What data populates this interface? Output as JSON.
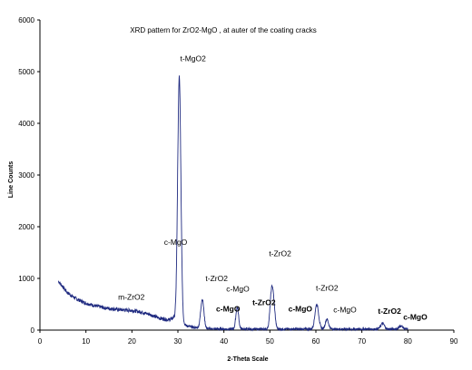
{
  "chart_data": {
    "type": "line",
    "title": "XRD pattern for ZrO2-MgO , at auter of the coating cracks",
    "xlabel": "2-Theta Scale",
    "ylabel": "Line Counts",
    "xlim": [
      0,
      90
    ],
    "ylim": [
      0,
      6000
    ],
    "x_ticks": [
      "0",
      "10",
      "20",
      "30",
      "40",
      "50",
      "60",
      "70",
      "80",
      "90"
    ],
    "y_ticks": [
      "0",
      "1000",
      "2000",
      "3000",
      "4000",
      "5000",
      "6000"
    ],
    "grid": false,
    "series_color": "#1f2a80",
    "background_points": [
      [
        4,
        950
      ],
      [
        6,
        720
      ],
      [
        8,
        600
      ],
      [
        10,
        520
      ],
      [
        12,
        470
      ],
      [
        14,
        430
      ],
      [
        16,
        410
      ],
      [
        18,
        390
      ],
      [
        20,
        380
      ],
      [
        22,
        350
      ],
      [
        24,
        300
      ],
      [
        26,
        230
      ],
      [
        28,
        200
      ],
      [
        29,
        230
      ]
    ],
    "peaks": [
      {
        "x": 30.3,
        "height": 4750,
        "width": 0.35
      },
      {
        "x": 35.3,
        "height": 560,
        "width": 0.35
      },
      {
        "x": 42.9,
        "height": 420,
        "width": 0.3
      },
      {
        "x": 50.4,
        "height": 750,
        "width": 0.35
      },
      {
        "x": 50.9,
        "height": 280,
        "width": 0.3
      },
      {
        "x": 60.2,
        "height": 480,
        "width": 0.4
      },
      {
        "x": 62.4,
        "height": 190,
        "width": 0.35
      },
      {
        "x": 74.5,
        "height": 110,
        "width": 0.4
      },
      {
        "x": 78.5,
        "height": 60,
        "width": 0.4
      }
    ],
    "annotations": [
      {
        "text": "t-MgO2",
        "x": 30.5,
        "y": 5200,
        "bold": false
      },
      {
        "text": "c-MgO",
        "x": 27.0,
        "y": 1650,
        "bold": false
      },
      {
        "text": "t-ZrO2",
        "x": 36.0,
        "y": 950,
        "bold": false
      },
      {
        "text": "c-MgO",
        "x": 40.5,
        "y": 750,
        "bold": false
      },
      {
        "text": "t-ZrO2",
        "x": 49.8,
        "y": 1430,
        "bold": false
      },
      {
        "text": "t-ZrO2",
        "x": 60.0,
        "y": 760,
        "bold": false
      },
      {
        "text": "m-ZrO2",
        "x": 17.0,
        "y": 590,
        "bold": false
      },
      {
        "text": "c-MgO",
        "x": 38.3,
        "y": 360,
        "bold": true
      },
      {
        "text": "t-ZrO2",
        "x": 46.2,
        "y": 480,
        "bold": true
      },
      {
        "text": "c-MgO",
        "x": 54.0,
        "y": 360,
        "bold": true
      },
      {
        "text": "c-MgO",
        "x": 63.8,
        "y": 340,
        "bold": false
      },
      {
        "text": "t-ZrO2",
        "x": 73.5,
        "y": 320,
        "bold": true
      },
      {
        "text": "c-MgO",
        "x": 79.0,
        "y": 200,
        "bold": true
      }
    ]
  }
}
